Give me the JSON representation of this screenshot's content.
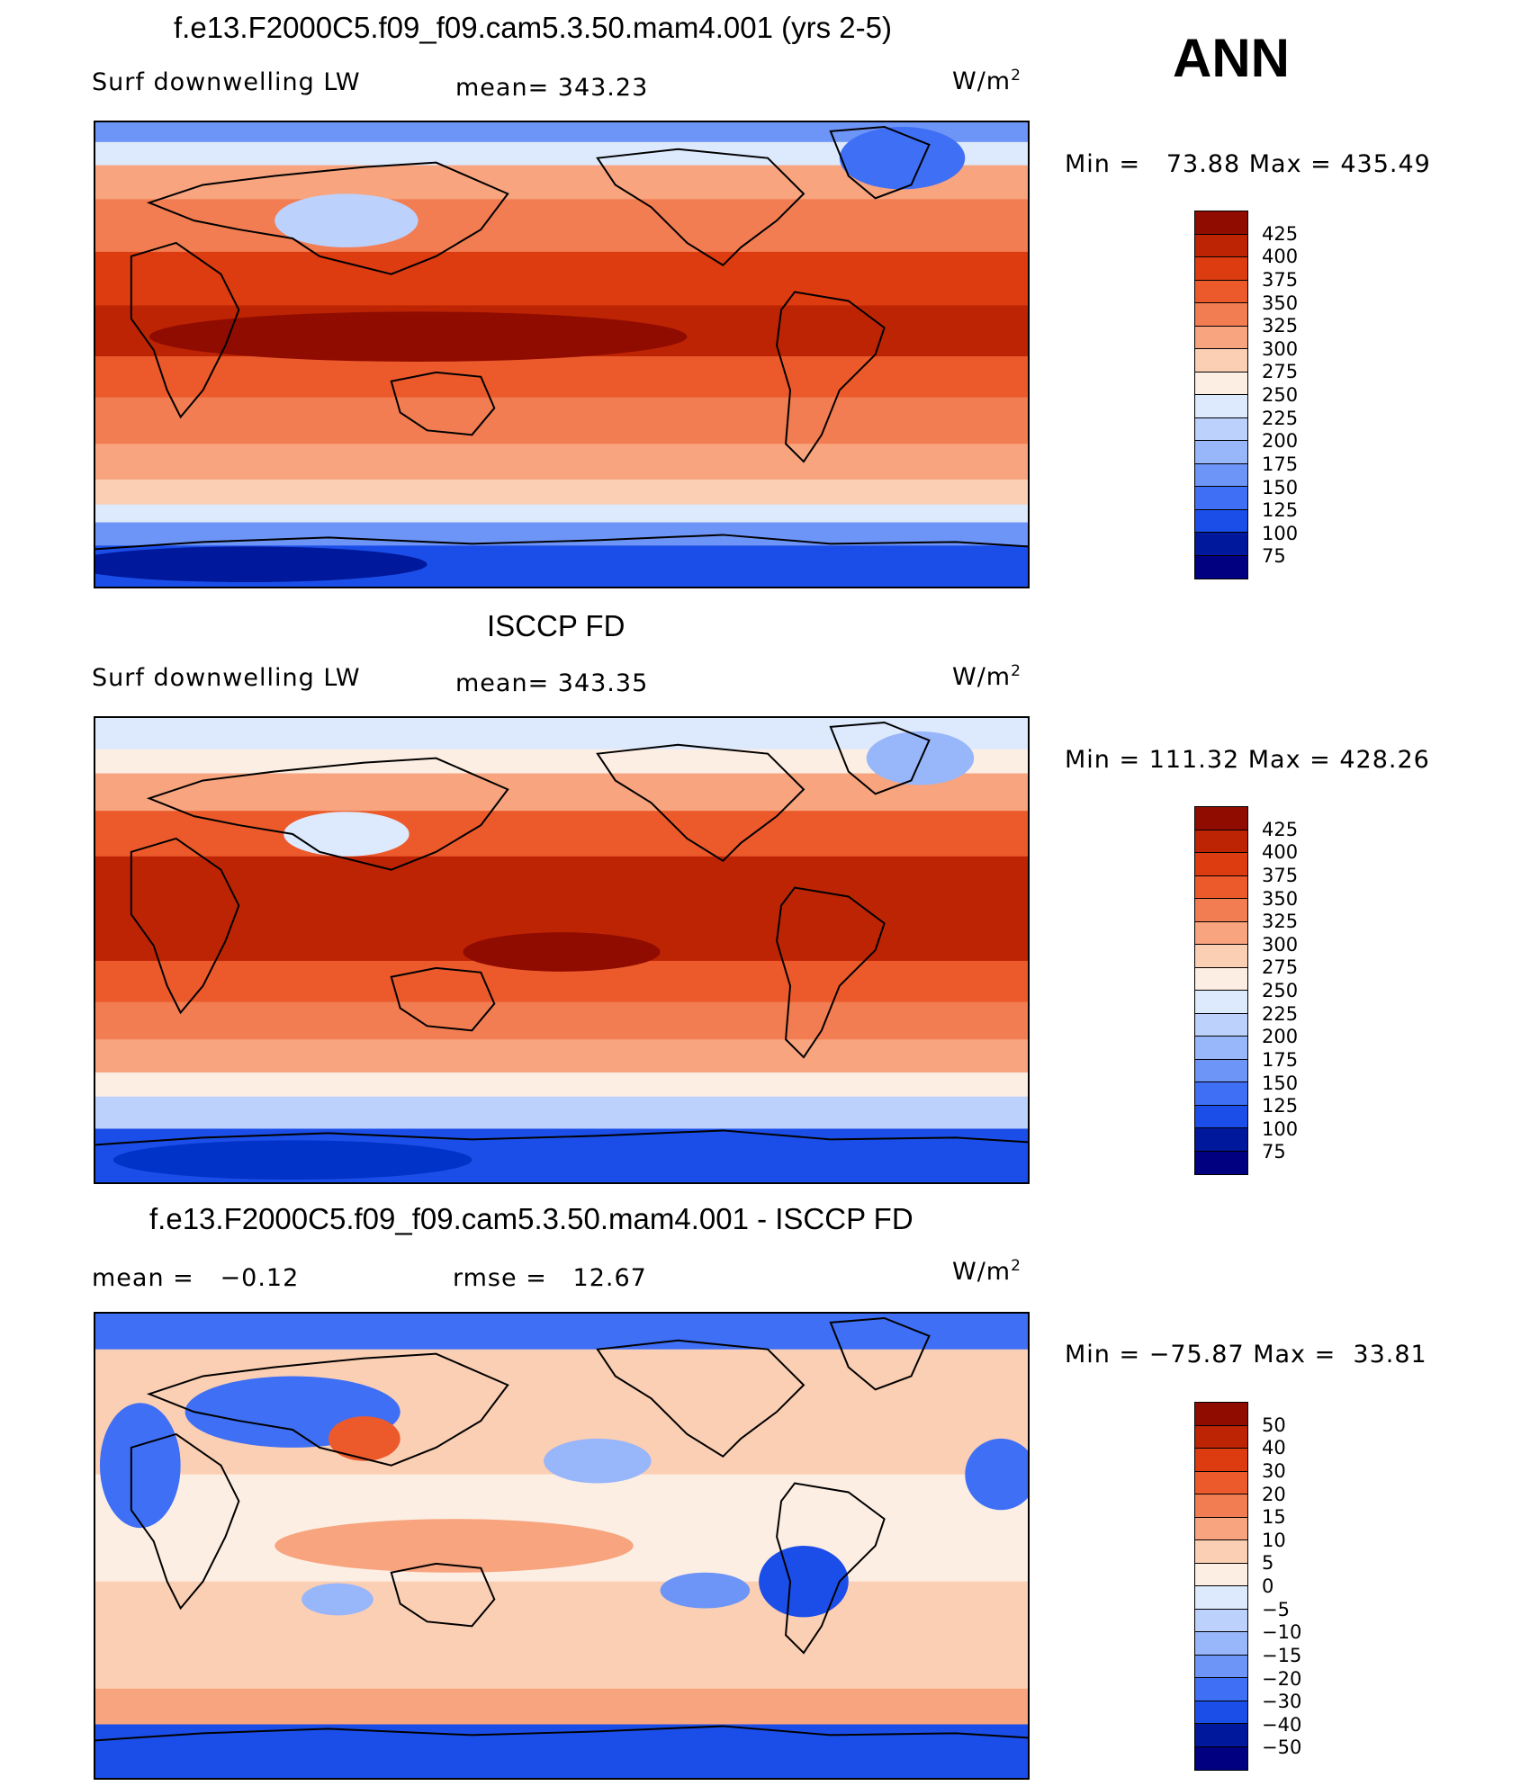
{
  "figure": {
    "season": "ANN",
    "colors": {
      "abs": [
        "#000080",
        "#00189b",
        "#0133c8",
        "#1b4ee8",
        "#3e6ff5",
        "#6d94f7",
        "#98b6fa",
        "#bcd2fc",
        "#dde9fd",
        "#fdeee3",
        "#fbcfb4",
        "#f7a47f",
        "#f27d52",
        "#ec5a2c",
        "#dd3b10",
        "#bd2404",
        "#900c00"
      ],
      "diff": [
        "#000080",
        "#00189b",
        "#0133c8",
        "#1b4ee8",
        "#3e6ff5",
        "#6d94f7",
        "#98b6fa",
        "#bcd2fc",
        "#dde9fd",
        "#fdeee3",
        "#fbcfb4",
        "#f7a47f",
        "#f27d52",
        "#ec5a2c",
        "#dd3b10",
        "#bd2404",
        "#900c00"
      ],
      "coast": "#000000"
    }
  },
  "panels": [
    {
      "title": "f.e13.F2000C5.f09_f09.cam5.3.50.mam4.001 (yrs 2-5)",
      "left_label": "Surf downwelling LW",
      "center_label": "mean= 343.23",
      "units_base": "W/m",
      "units_exp": "2",
      "minmax": "Min =   73.88 Max = 435.49",
      "colorbar_ticks": [
        "425",
        "400",
        "375",
        "350",
        "325",
        "300",
        "275",
        "250",
        "225",
        "200",
        "175",
        "150",
        "125",
        "100",
        "75"
      ]
    },
    {
      "title": "ISCCP FD",
      "left_label": "Surf downwelling LW",
      "center_label": "mean= 343.35",
      "units_base": "W/m",
      "units_exp": "2",
      "minmax": "Min = 111.32 Max = 428.26",
      "colorbar_ticks": [
        "425",
        "400",
        "375",
        "350",
        "325",
        "300",
        "275",
        "250",
        "225",
        "200",
        "175",
        "150",
        "125",
        "100",
        "75"
      ]
    },
    {
      "title": "f.e13.F2000C5.f09_f09.cam5.3.50.mam4.001 - ISCCP FD",
      "left_label": "mean =   −0.12",
      "center_label": "rmse =   12.67",
      "units_base": "W/m",
      "units_exp": "2",
      "minmax": "Min = −75.87 Max =  33.81",
      "colorbar_ticks": [
        "50",
        "40",
        "30",
        "20",
        "15",
        "10",
        "5",
        "0",
        "−5",
        "−10",
        "−15",
        "−20",
        "−30",
        "−40",
        "−50"
      ]
    }
  ]
}
